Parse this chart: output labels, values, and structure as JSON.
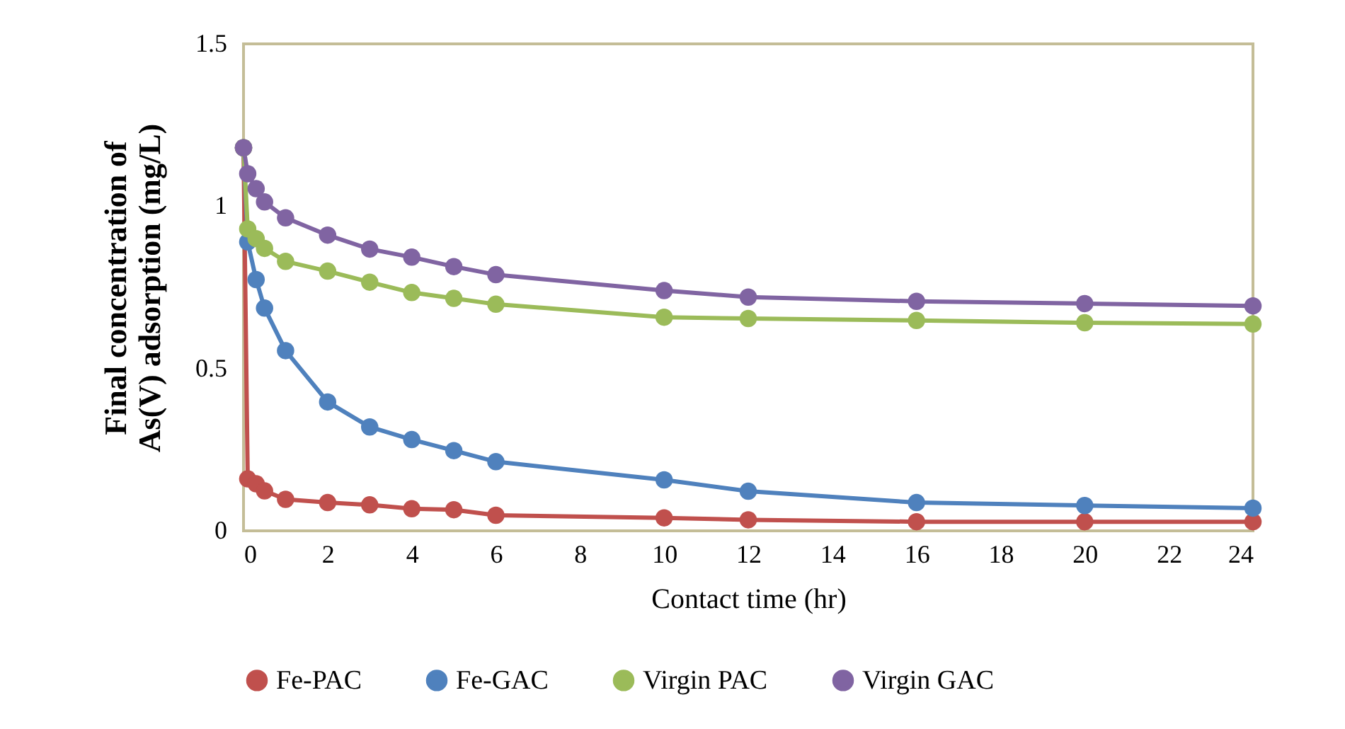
{
  "chart_data": {
    "type": "line",
    "xlabel": "Contact time (hr)",
    "ylabel": "Final concentration of As(V) adsorption (mg/L)",
    "x": [
      0,
      0.1,
      0.3,
      0.5,
      1,
      2,
      3,
      4,
      5,
      6,
      10,
      12,
      16,
      20,
      24
    ],
    "series": [
      {
        "name": "Fe-PAC",
        "color": "#c0504d",
        "values": [
          1.18,
          0.16,
          0.145,
          0.123,
          0.097,
          0.087,
          0.08,
          0.068,
          0.065,
          0.048,
          0.04,
          0.034,
          0.028,
          0.028,
          0.028
        ]
      },
      {
        "name": "Fe-GAC",
        "color": "#4f81bd",
        "values": [
          1.18,
          0.89,
          0.774,
          0.686,
          0.555,
          0.397,
          0.32,
          0.281,
          0.247,
          0.213,
          0.157,
          0.122,
          0.087,
          0.078,
          0.07
        ]
      },
      {
        "name": "Virgin PAC",
        "color": "#9bbb59",
        "values": [
          1.18,
          0.93,
          0.9,
          0.87,
          0.83,
          0.8,
          0.766,
          0.734,
          0.716,
          0.698,
          0.658,
          0.654,
          0.648,
          0.641,
          0.637
        ]
      },
      {
        "name": "Virgin GAC",
        "color": "#8064a2",
        "values": [
          1.18,
          1.1,
          1.054,
          1.013,
          0.964,
          0.911,
          0.868,
          0.843,
          0.814,
          0.789,
          0.74,
          0.72,
          0.707,
          0.7,
          0.693
        ]
      }
    ],
    "xlim": [
      0,
      24
    ],
    "xticks": [
      0,
      2,
      4,
      6,
      8,
      10,
      12,
      14,
      16,
      18,
      20,
      22,
      24
    ],
    "ylim": [
      0,
      1.5
    ],
    "yticks": [
      0,
      0.5,
      1,
      1.5
    ],
    "grid": false,
    "legend": "bottom",
    "marker": "circle",
    "line_style": "solid"
  }
}
